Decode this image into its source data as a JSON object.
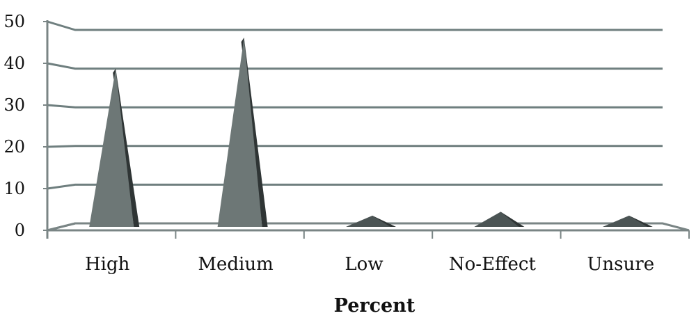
{
  "chart_data": {
    "type": "bar",
    "style": "3d-pyramid",
    "title": "",
    "xlabel": "Percent",
    "ylabel": "",
    "ylim": [
      0,
      50
    ],
    "yticks": [
      "0",
      "10",
      "20",
      "30",
      "40",
      "50"
    ],
    "categories": [
      "High",
      "Medium",
      "Low",
      "No-Effect",
      "Unsure"
    ],
    "series": [
      {
        "values": [
          40,
          48,
          2,
          3,
          2
        ]
      }
    ],
    "grid": true,
    "legend": "none",
    "colors": {
      "gridline": "#6f7f7f",
      "axis": "#7a8585",
      "bar_front": "#6d7776",
      "bar_side": "#2f3535",
      "small_bar": "#4b5454"
    }
  }
}
